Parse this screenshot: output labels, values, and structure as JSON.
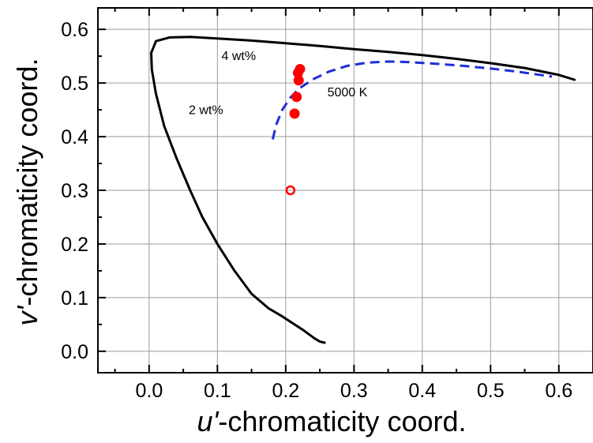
{
  "chart_data": {
    "type": "scatter",
    "xlabel_var": "u'",
    "xlabel_rest": "-chromaticity coord.",
    "ylabel_var": "v'",
    "ylabel_rest": "-chromaticity coord.",
    "xlim": [
      -0.075,
      0.65
    ],
    "ylim": [
      -0.04,
      0.64
    ],
    "xticks": [
      0.0,
      0.1,
      0.2,
      0.3,
      0.4,
      0.5,
      0.6
    ],
    "yticks": [
      0.0,
      0.1,
      0.2,
      0.3,
      0.4,
      0.5,
      0.6
    ],
    "xtick_labels": [
      "0.0",
      "0.1",
      "0.2",
      "0.3",
      "0.4",
      "0.5",
      "0.6"
    ],
    "ytick_labels": [
      "0.0",
      "0.1",
      "0.2",
      "0.3",
      "0.4",
      "0.5",
      "0.6"
    ],
    "grid": true,
    "spectral_locus": {
      "color": "#000000",
      "points": [
        [
          0.257,
          0.016
        ],
        [
          0.25,
          0.018
        ],
        [
          0.241,
          0.025
        ],
        [
          0.225,
          0.04
        ],
        [
          0.195,
          0.065
        ],
        [
          0.175,
          0.08
        ],
        [
          0.15,
          0.107
        ],
        [
          0.125,
          0.15
        ],
        [
          0.1,
          0.2
        ],
        [
          0.078,
          0.25
        ],
        [
          0.06,
          0.3
        ],
        [
          0.04,
          0.36
        ],
        [
          0.022,
          0.42
        ],
        [
          0.01,
          0.48
        ],
        [
          0.004,
          0.525
        ],
        [
          0.003,
          0.556
        ],
        [
          0.01,
          0.578
        ],
        [
          0.03,
          0.585
        ],
        [
          0.06,
          0.586
        ],
        [
          0.1,
          0.583
        ],
        [
          0.15,
          0.579
        ],
        [
          0.2,
          0.574
        ],
        [
          0.25,
          0.569
        ],
        [
          0.3,
          0.563
        ],
        [
          0.35,
          0.558
        ],
        [
          0.4,
          0.552
        ],
        [
          0.45,
          0.545
        ],
        [
          0.5,
          0.537
        ],
        [
          0.55,
          0.528
        ],
        [
          0.6,
          0.515
        ],
        [
          0.623,
          0.506
        ]
      ]
    },
    "planckian_locus": {
      "color": "#1f2ed6",
      "dashed": true,
      "points": [
        [
          0.181,
          0.395
        ],
        [
          0.186,
          0.422
        ],
        [
          0.195,
          0.45
        ],
        [
          0.207,
          0.473
        ],
        [
          0.22,
          0.49
        ],
        [
          0.24,
          0.507
        ],
        [
          0.263,
          0.521
        ],
        [
          0.29,
          0.532
        ],
        [
          0.32,
          0.538
        ],
        [
          0.35,
          0.54
        ],
        [
          0.38,
          0.539
        ],
        [
          0.42,
          0.536
        ],
        [
          0.46,
          0.532
        ],
        [
          0.5,
          0.527
        ],
        [
          0.54,
          0.521
        ],
        [
          0.59,
          0.512
        ]
      ]
    },
    "samples": [
      {
        "x": 0.221,
        "y": 0.526,
        "filled": true,
        "color": "#ff0000"
      },
      {
        "x": 0.218,
        "y": 0.519,
        "filled": true,
        "color": "#ff0000"
      },
      {
        "x": 0.219,
        "y": 0.505,
        "filled": true,
        "color": "#ff0000"
      },
      {
        "x": 0.216,
        "y": 0.474,
        "filled": true,
        "color": "#ff0000"
      },
      {
        "x": 0.213,
        "y": 0.443,
        "filled": true,
        "color": "#ff0000"
      },
      {
        "x": 0.207,
        "y": 0.3,
        "filled": false,
        "color": "#ff0000"
      }
    ],
    "annotations": [
      {
        "text": "4 wt%",
        "x": 0.106,
        "y": 0.543
      },
      {
        "text": "5000 K",
        "x": 0.261,
        "y": 0.475
      },
      {
        "text": "2 wt%",
        "x": 0.058,
        "y": 0.442
      }
    ]
  }
}
